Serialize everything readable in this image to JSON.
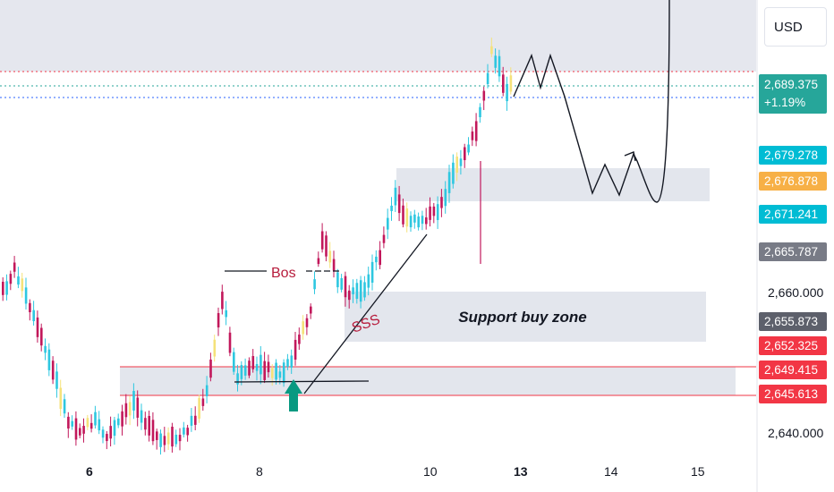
{
  "chart_data": {
    "type": "candlestick",
    "instrument_currency": "USD",
    "y_ticks": [
      "2,660.000",
      "2,640.000"
    ],
    "x_ticks": [
      "6",
      "8",
      "10",
      "13",
      "14",
      "15"
    ],
    "x_tick_bold": [
      "6",
      "13"
    ],
    "annotations": {
      "bos": "Bos",
      "sss": "SSS",
      "support_zone": "Support buy zone"
    },
    "price_labels": [
      {
        "value": "2,689.375",
        "change": "+1.19%",
        "color": "#26a69a"
      },
      {
        "value": "2,679.278",
        "color": "#00bcd4"
      },
      {
        "value": "2,676.878",
        "color": "#f7b046"
      },
      {
        "value": "2,671.241",
        "color": "#00bcd4"
      },
      {
        "value": "2,665.787",
        "color": "#787b86"
      },
      {
        "value": "2,655.873",
        "color": "#5d606b"
      },
      {
        "value": "2,652.325",
        "color": "#f23645"
      },
      {
        "value": "2,649.415",
        "color": "#f23645"
      },
      {
        "value": "2,645.613",
        "color": "#f23645"
      }
    ],
    "candle_colors": {
      "up": "#2ec7e0",
      "down": "#c2185b",
      "alt": "#f5e27a"
    },
    "zone_color": "#e0e3eb",
    "arrow_color": "#089981"
  }
}
